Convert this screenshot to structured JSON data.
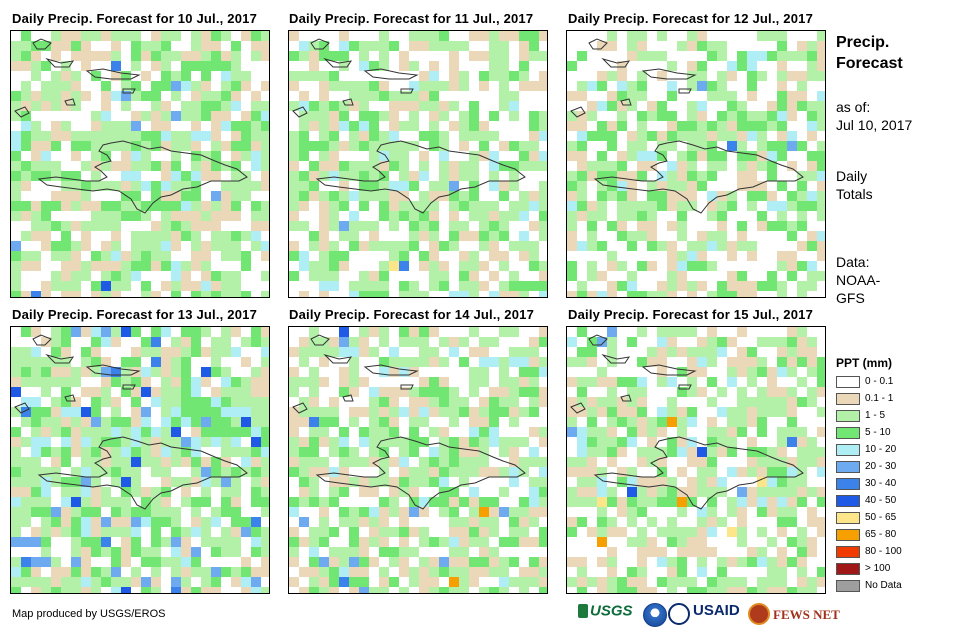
{
  "panels": [
    {
      "title": "Daily Precip. Forecast for 10 Jul., 2017"
    },
    {
      "title": "Daily Precip. Forecast for 11 Jul., 2017"
    },
    {
      "title": "Daily Precip. Forecast for 12 Jul., 2017"
    },
    {
      "title": "Daily Precip. Forecast for 13 Jul., 2017"
    },
    {
      "title": "Daily Precip. Forecast for 14 Jul., 2017"
    },
    {
      "title": "Daily Precip. Forecast for 15 Jul., 2017"
    }
  ],
  "sidebar": {
    "title_line1": "Precip.",
    "title_line2": "Forecast",
    "asof_label": "as of:",
    "asof_date": "Jul 10, 2017",
    "totals_line1": "Daily",
    "totals_line2": "Totals",
    "data_label": "Data:",
    "data_line1": "NOAA-",
    "data_line2": "GFS"
  },
  "legend": {
    "title": "PPT (mm)",
    "items": [
      {
        "label": "0 - 0.1",
        "color": "#ffffff"
      },
      {
        "label": "0.1 - 1",
        "color": "#ead8b9"
      },
      {
        "label": "1 - 5",
        "color": "#b3f0a8"
      },
      {
        "label": "5 - 10",
        "color": "#72e672"
      },
      {
        "label": "10 - 20",
        "color": "#b0eef6"
      },
      {
        "label": "20 - 30",
        "color": "#6eaaf0"
      },
      {
        "label": "30 - 40",
        "color": "#3c82eb"
      },
      {
        "label": "40 - 50",
        "color": "#1e5ae6"
      },
      {
        "label": "50 - 65",
        "color": "#fde68a"
      },
      {
        "label": "65 - 80",
        "color": "#f5a000"
      },
      {
        "label": "80 - 100",
        "color": "#f03c00"
      },
      {
        "label": "> 100",
        "color": "#a01818"
      },
      {
        "label": "No Data",
        "color": "#9e9e9e"
      }
    ]
  },
  "footer": {
    "credit": "Map produced by USGS/EROS",
    "logo_usgs": "USGS",
    "logo_usaid": "USAID",
    "logo_fewsnet": "FEWS NET"
  }
}
